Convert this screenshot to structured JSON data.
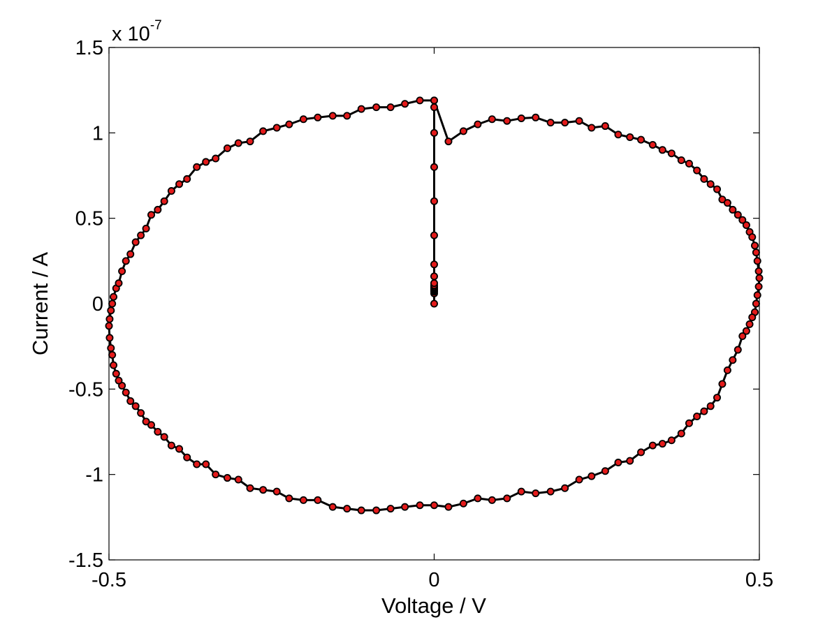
{
  "chart_data": {
    "type": "scatter",
    "title": "",
    "xlabel": "Voltage / V",
    "ylabel": "Current / A",
    "xlim": [
      -0.5,
      0.5
    ],
    "ylim": [
      -1.5,
      1.5
    ],
    "x_ticks": [
      "-0.5",
      "0",
      "0.5"
    ],
    "y_ticks": [
      "-1.5",
      "-1",
      "-0.5",
      "0",
      "0.5",
      "1",
      "1.5"
    ],
    "y_exponent": {
      "base": "x 10",
      "power": "-7"
    },
    "grid": false,
    "legend": "none",
    "line_color": "#000000",
    "marker_face_color": "#e31b1b",
    "marker_edge_color": "#000000",
    "series": [
      {
        "values_x": [
          0.0,
          0.0,
          0.0,
          0.0,
          0.0,
          0.0,
          0.0,
          0.0,
          0.0,
          0.0,
          0.0,
          0.0,
          0.0,
          0.0,
          0.0,
          0.0,
          0.0,
          0.0,
          0.0,
          0.022,
          0.045,
          0.067,
          0.089,
          0.112,
          0.134,
          0.156,
          0.179,
          0.201,
          0.223,
          0.242,
          0.263,
          0.283,
          0.301,
          0.318,
          0.336,
          0.351,
          0.365,
          0.38,
          0.392,
          0.404,
          0.415,
          0.425,
          0.435,
          0.443,
          0.451,
          0.459,
          0.467,
          0.474,
          0.48,
          0.485,
          0.489,
          0.493,
          0.495,
          0.497,
          0.499,
          0.5,
          0.499,
          0.497,
          0.495,
          0.493,
          0.489,
          0.485,
          0.48,
          0.474,
          0.467,
          0.459,
          0.451,
          0.443,
          0.435,
          0.425,
          0.415,
          0.404,
          0.392,
          0.38,
          0.365,
          0.351,
          0.336,
          0.318,
          0.301,
          0.283,
          0.263,
          0.242,
          0.223,
          0.201,
          0.179,
          0.156,
          0.134,
          0.112,
          0.089,
          0.067,
          0.045,
          0.022,
          0.0,
          -0.022,
          -0.045,
          -0.067,
          -0.089,
          -0.112,
          -0.134,
          -0.156,
          -0.179,
          -0.201,
          -0.223,
          -0.242,
          -0.263,
          -0.283,
          -0.301,
          -0.318,
          -0.336,
          -0.351,
          -0.365,
          -0.38,
          -0.392,
          -0.404,
          -0.415,
          -0.425,
          -0.435,
          -0.443,
          -0.451,
          -0.459,
          -0.467,
          -0.474,
          -0.48,
          -0.485,
          -0.489,
          -0.493,
          -0.495,
          -0.497,
          -0.499,
          -0.5,
          -0.499,
          -0.497,
          -0.495,
          -0.493,
          -0.489,
          -0.485,
          -0.48,
          -0.474,
          -0.467,
          -0.459,
          -0.451,
          -0.443,
          -0.435,
          -0.425,
          -0.415,
          -0.404,
          -0.392,
          -0.38,
          -0.365,
          -0.351,
          -0.336,
          -0.318,
          -0.301,
          -0.283,
          -0.263,
          -0.242,
          -0.223,
          -0.201,
          -0.179,
          -0.156,
          -0.134,
          -0.112,
          -0.089,
          -0.067,
          -0.045,
          -0.022,
          0.0
        ],
        "values_y": [
          0.0,
          0.06,
          0.07,
          0.075,
          0.08,
          0.085,
          0.09,
          0.095,
          0.1,
          0.108,
          0.12,
          0.16,
          0.23,
          0.4,
          0.6,
          0.8,
          1.0,
          1.15,
          1.19,
          0.95,
          1.01,
          1.05,
          1.08,
          1.07,
          1.085,
          1.09,
          1.06,
          1.06,
          1.07,
          1.03,
          1.04,
          0.99,
          0.975,
          0.96,
          0.93,
          0.9,
          0.88,
          0.84,
          0.82,
          0.78,
          0.73,
          0.7,
          0.67,
          0.61,
          0.59,
          0.55,
          0.52,
          0.49,
          0.46,
          0.42,
          0.39,
          0.34,
          0.3,
          0.25,
          0.19,
          0.15,
          0.1,
          0.05,
          0.0,
          -0.05,
          -0.08,
          -0.12,
          -0.16,
          -0.19,
          -0.27,
          -0.33,
          -0.39,
          -0.47,
          -0.55,
          -0.6,
          -0.63,
          -0.66,
          -0.7,
          -0.76,
          -0.8,
          -0.82,
          -0.83,
          -0.87,
          -0.92,
          -0.93,
          -0.98,
          -1.01,
          -1.03,
          -1.08,
          -1.1,
          -1.11,
          -1.1,
          -1.14,
          -1.15,
          -1.14,
          -1.17,
          -1.19,
          -1.18,
          -1.18,
          -1.19,
          -1.2,
          -1.21,
          -1.21,
          -1.2,
          -1.19,
          -1.15,
          -1.15,
          -1.14,
          -1.1,
          -1.09,
          -1.08,
          -1.03,
          -1.02,
          -1.0,
          -0.94,
          -0.94,
          -0.9,
          -0.85,
          -0.83,
          -0.78,
          -0.75,
          -0.71,
          -0.69,
          -0.64,
          -0.6,
          -0.57,
          -0.52,
          -0.48,
          -0.45,
          -0.41,
          -0.36,
          -0.3,
          -0.26,
          -0.2,
          -0.13,
          -0.09,
          -0.04,
          0.0,
          0.04,
          0.09,
          0.12,
          0.19,
          0.25,
          0.29,
          0.36,
          0.4,
          0.44,
          0.52,
          0.55,
          0.6,
          0.66,
          0.7,
          0.73,
          0.8,
          0.83,
          0.85,
          0.91,
          0.94,
          0.95,
          1.01,
          1.03,
          1.05,
          1.08,
          1.09,
          1.1,
          1.1,
          1.14,
          1.15,
          1.15,
          1.17,
          1.19,
          1.19
        ]
      }
    ]
  }
}
